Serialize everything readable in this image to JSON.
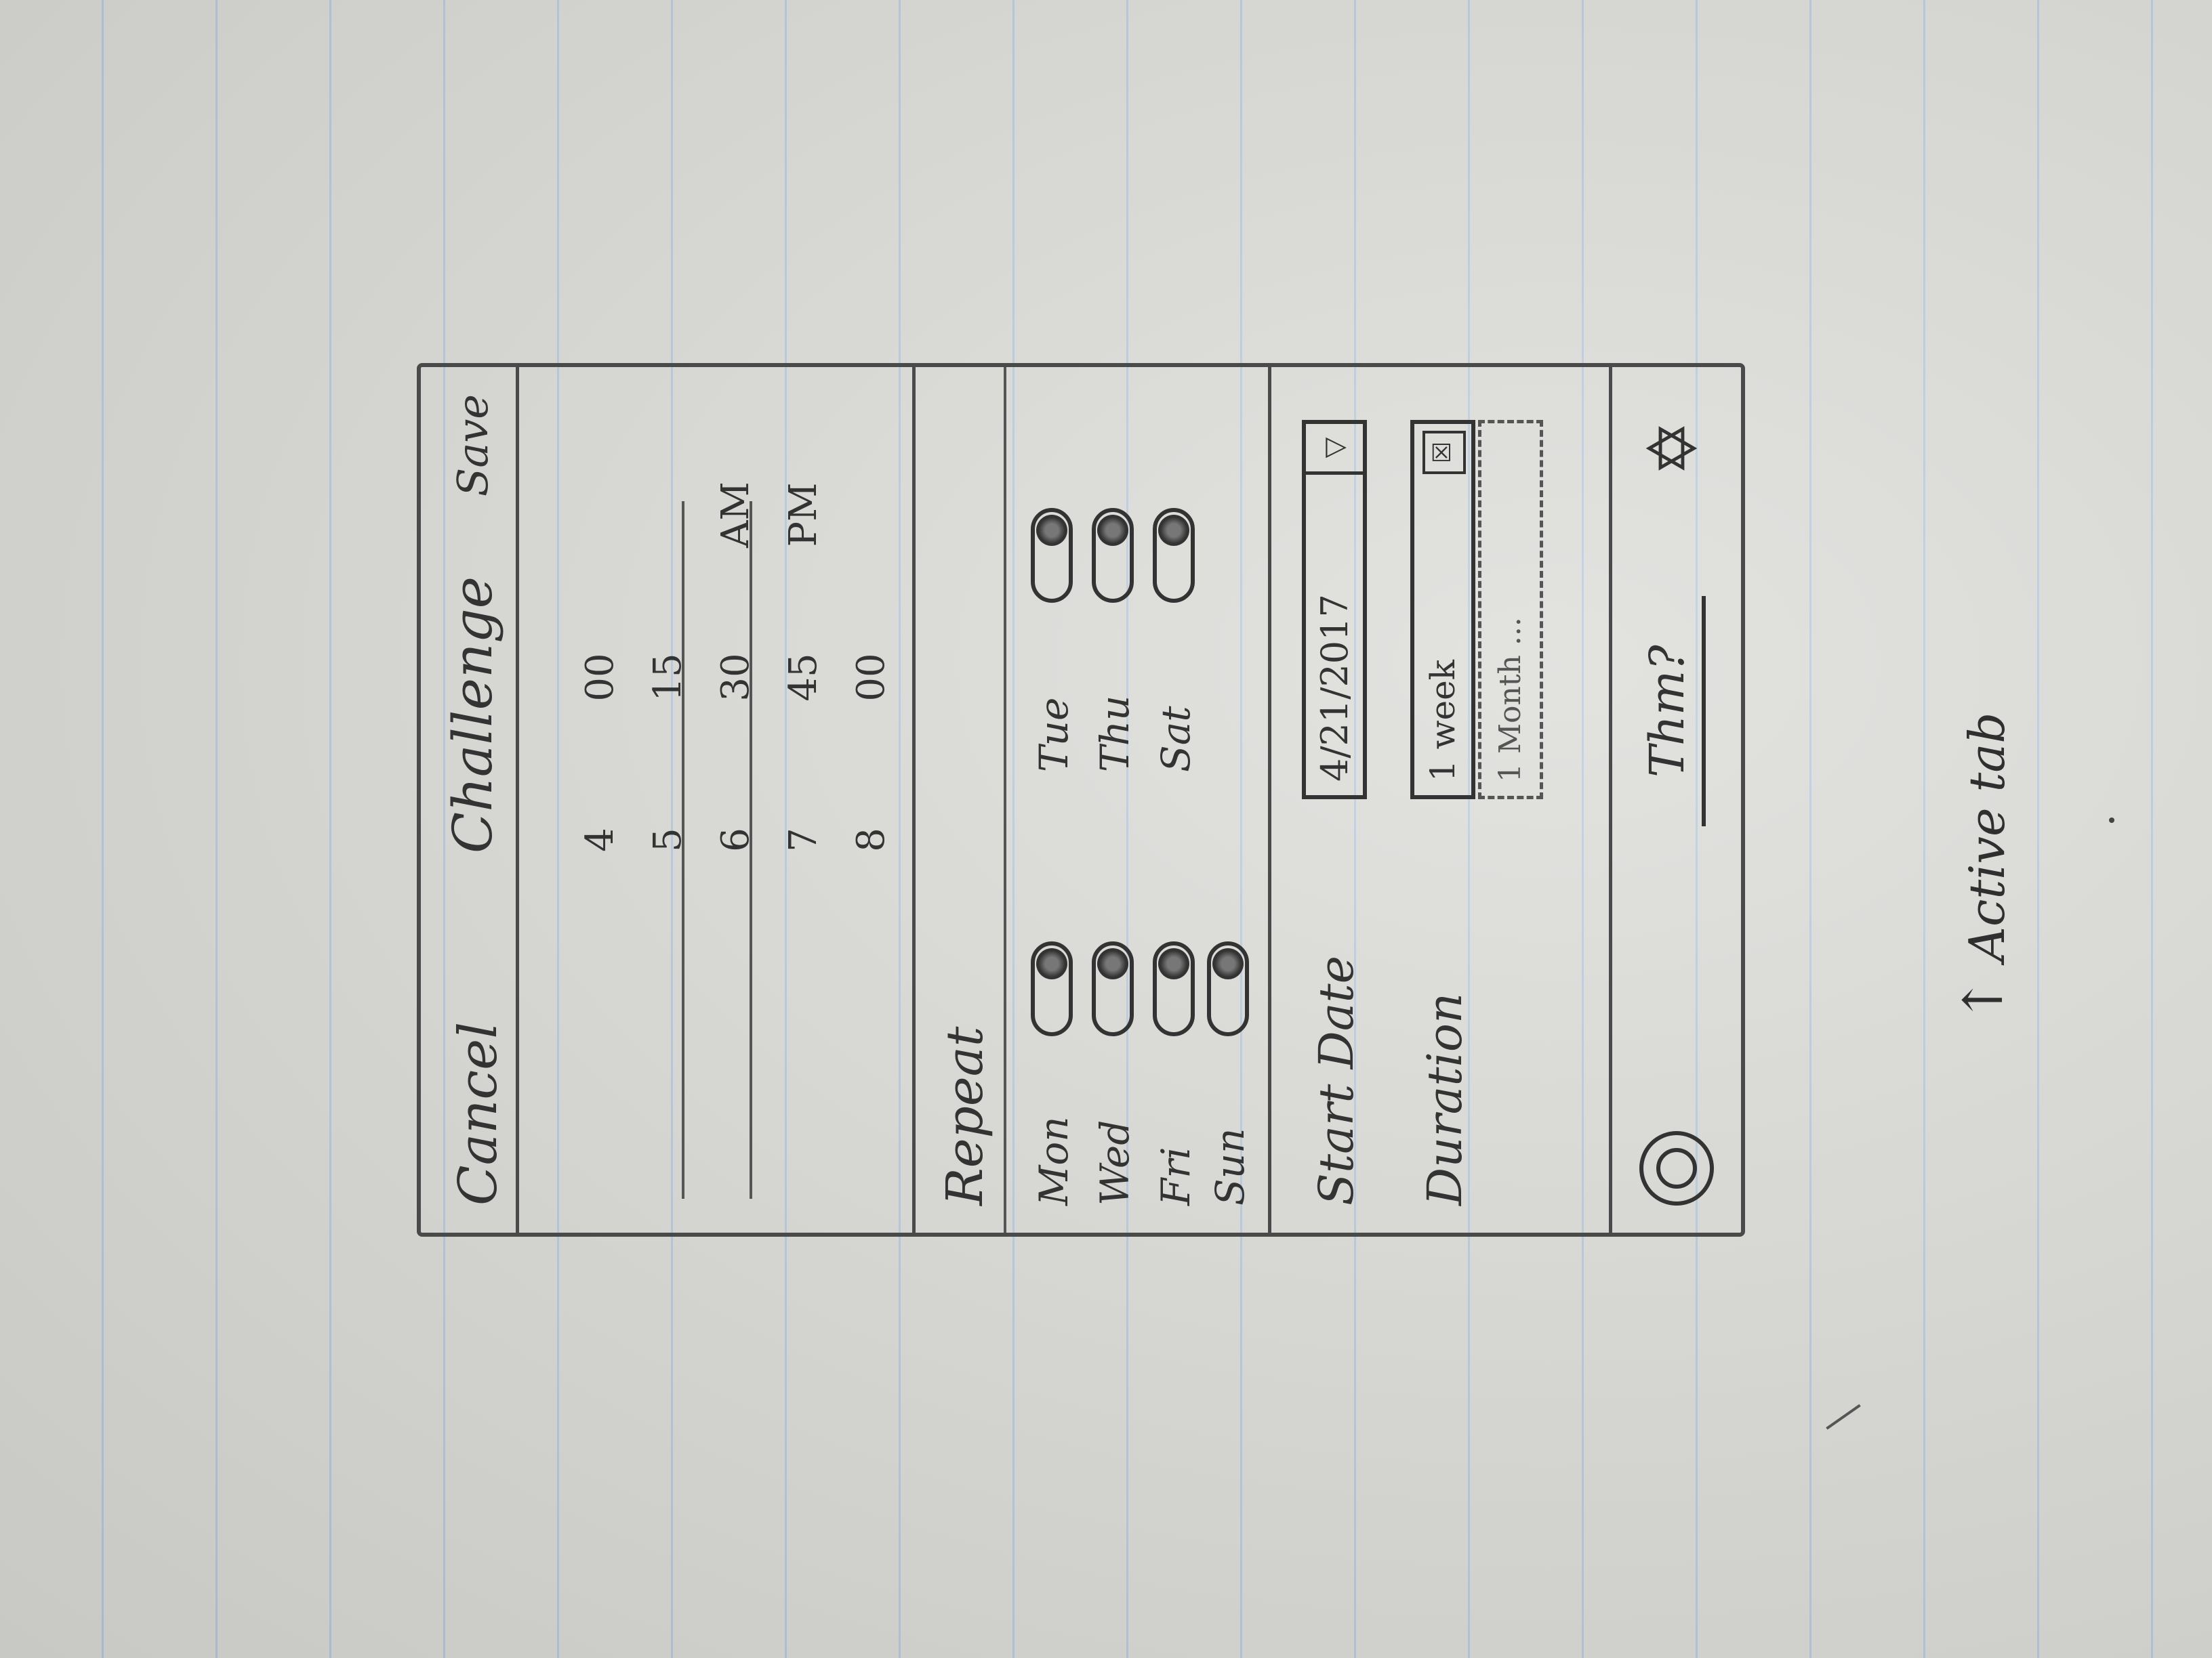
{
  "header": {
    "cancel_label": "Cancel",
    "title": "Challenge",
    "save_label": "Save"
  },
  "time_picker": {
    "hours": [
      "4",
      "5",
      "6",
      "7",
      "8"
    ],
    "minutes": [
      "00",
      "15",
      "30",
      "45",
      "00"
    ],
    "meridiem": [
      "AM",
      "PM"
    ],
    "selected": {
      "hour": "6",
      "minute": "30",
      "meridiem": "AM"
    }
  },
  "repeat": {
    "label": "Repeat",
    "days": [
      {
        "name": "Mon",
        "on": true
      },
      {
        "name": "Tue",
        "on": true
      },
      {
        "name": "Wed",
        "on": true
      },
      {
        "name": "Thu",
        "on": true
      },
      {
        "name": "Fri",
        "on": true
      },
      {
        "name": "Sat",
        "on": true
      },
      {
        "name": "Sun",
        "on": true
      }
    ]
  },
  "settings": {
    "start_date_label": "Start Date",
    "start_date_value": "4/21/2017",
    "duration_label": "Duration",
    "duration_value": "1 week",
    "duration_option": "1 Month ..."
  },
  "tabbar": {
    "active_tab_label": "Thm?"
  },
  "annotation": {
    "note": "Active tab"
  }
}
